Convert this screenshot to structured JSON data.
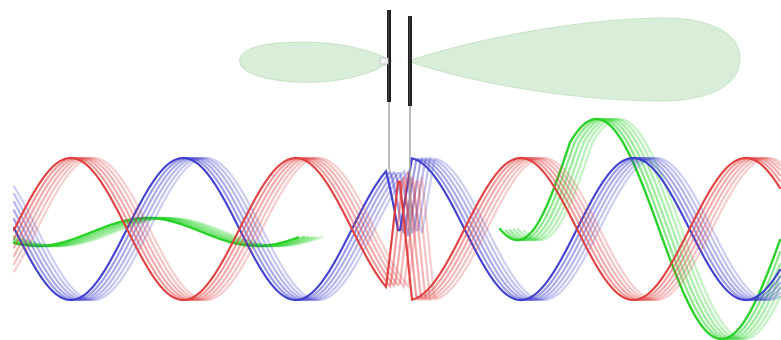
{
  "diagram": {
    "colors": {
      "background": "#ffffff",
      "electric_wave": "#e03a3a",
      "magnetic_wave": "#3a3acf",
      "directivity_lobe": "#cfe8cf",
      "lobe_edge": "#b8deb8",
      "antenna_rod": "#222222",
      "feed_line": "#999999",
      "green_wave": "#1fd01f"
    },
    "icons": {
      "antenna": "dipole-antenna-icon",
      "radiation_pattern": "radiation-lobe-icon"
    },
    "waves": {
      "strands_per_wave": 6,
      "red": {
        "color_key": "electric_wave"
      },
      "blue": {
        "color_key": "magnetic_wave"
      },
      "green": {
        "color_key": "green_wave"
      }
    }
  }
}
